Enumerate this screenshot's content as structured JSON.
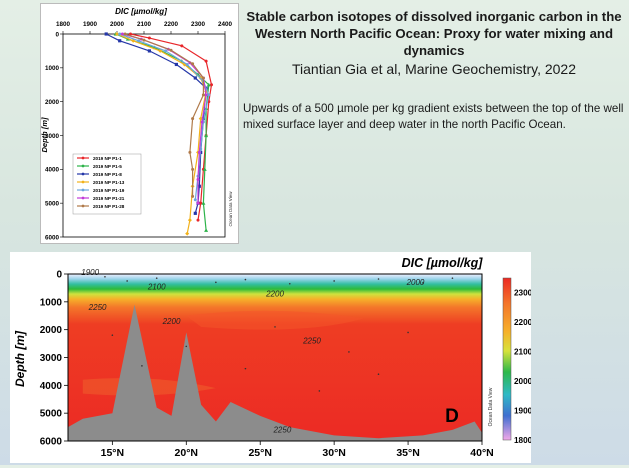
{
  "slide": {
    "title": "Stable carbon isotopes of dissolved inorganic carbon in the Western North Pacific Ocean: Proxy for water mixing and dynamics",
    "citation": "Tiantian Gia et al, Marine Geochemistry, 2022",
    "description": "Upwards of a 500 µmole per kg gradient exists between the top of the well mixed surface layer and deep water in the north Pacific Ocean."
  },
  "chart_data": [
    {
      "type": "line",
      "title": "DIC [µmol/kg]",
      "ylabel": "Depth [m]",
      "xlim": [
        1800,
        2400
      ],
      "ylim": [
        6000,
        0
      ],
      "x_ticks": [
        "1800",
        "1900",
        "2000",
        "2100",
        "2200",
        "2300",
        "2400"
      ],
      "y_ticks": [
        "0",
        "1000",
        "2000",
        "3000",
        "4000",
        "5000",
        "6000"
      ],
      "legend_position": "bottom-left",
      "watermark": "Ocean Data View",
      "series": [
        {
          "name": "2019 NP P1-1",
          "color": "#e8262a",
          "marker": "circle",
          "points": [
            [
              2050,
              0
            ],
            [
              2120,
              120
            ],
            [
              2240,
              350
            ],
            [
              2330,
              800
            ],
            [
              2350,
              1500
            ],
            [
              2340,
              2000
            ],
            [
              2330,
              3000
            ],
            [
              2320,
              4000
            ],
            [
              2310,
              5000
            ],
            [
              2300,
              5500
            ]
          ]
        },
        {
          "name": "2019 NP P1-5",
          "color": "#2db34a",
          "marker": "triangle",
          "points": [
            [
              1995,
              0
            ],
            [
              2040,
              150
            ],
            [
              2140,
              400
            ],
            [
              2240,
              800
            ],
            [
              2300,
              1200
            ],
            [
              2340,
              1500
            ],
            [
              2330,
              2200
            ],
            [
              2330,
              3000
            ],
            [
              2325,
              4000
            ],
            [
              2320,
              5000
            ],
            [
              2330,
              5800
            ]
          ]
        },
        {
          "name": "2019 NP P1-8",
          "color": "#2537a8",
          "marker": "square",
          "points": [
            [
              1960,
              0
            ],
            [
              2010,
              200
            ],
            [
              2120,
              500
            ],
            [
              2220,
              900
            ],
            [
              2290,
              1300
            ],
            [
              2330,
              1600
            ],
            [
              2320,
              2500
            ],
            [
              2310,
              3500
            ],
            [
              2305,
              4500
            ],
            [
              2300,
              5000
            ],
            [
              2290,
              5300
            ]
          ]
        },
        {
          "name": "2019 NP P1-13",
          "color": "#f2b21b",
          "marker": "diamond",
          "points": [
            [
              2000,
              0
            ],
            [
              2060,
              200
            ],
            [
              2160,
              500
            ],
            [
              2250,
              900
            ],
            [
              2310,
              1300
            ],
            [
              2330,
              1700
            ],
            [
              2310,
              2500
            ],
            [
              2300,
              3500
            ],
            [
              2280,
              4500
            ],
            [
              2270,
              5500
            ],
            [
              2260,
              5900
            ]
          ]
        },
        {
          "name": "2019 NP P1-19",
          "color": "#6aa6dc",
          "marker": "circle",
          "points": [
            [
              2010,
              0
            ],
            [
              2080,
              200
            ],
            [
              2180,
              500
            ],
            [
              2260,
              900
            ],
            [
              2320,
              1400
            ],
            [
              2340,
              1800
            ],
            [
              2320,
              2600
            ],
            [
              2310,
              3400
            ],
            [
              2300,
              4200
            ],
            [
              2290,
              4900
            ]
          ]
        },
        {
          "name": "2019 NP P1-21",
          "color": "#c23bd8",
          "marker": "circle",
          "points": [
            [
              2020,
              0
            ],
            [
              2090,
              150
            ],
            [
              2190,
              450
            ],
            [
              2270,
              850
            ],
            [
              2320,
              1300
            ],
            [
              2330,
              1800
            ],
            [
              2315,
              2600
            ],
            [
              2305,
              3500
            ],
            [
              2300,
              4300
            ],
            [
              2300,
              5000
            ]
          ]
        },
        {
          "name": "2019 NP P1-28",
          "color": "#b07a4a",
          "marker": "circle",
          "points": [
            [
              2030,
              0
            ],
            [
              2100,
              180
            ],
            [
              2200,
              480
            ],
            [
              2280,
              880
            ],
            [
              2320,
              1300
            ],
            [
              2320,
              1800
            ],
            [
              2280,
              2500
            ],
            [
              2270,
              3500
            ],
            [
              2280,
              4000
            ],
            [
              2280,
              4800
            ]
          ]
        }
      ]
    },
    {
      "type": "heatmap",
      "title": "DIC [µmol/kg]",
      "ylabel": "Depth [m]",
      "xlim": [
        12,
        40
      ],
      "ylim": [
        6000,
        0
      ],
      "x_ticks": [
        "15°N",
        "20°N",
        "25°N",
        "30°N",
        "35°N",
        "40°N"
      ],
      "y_ticks": [
        "0",
        "1000",
        "2000",
        "3000",
        "4000",
        "5000",
        "6000"
      ],
      "colorbar": {
        "range": [
          1800,
          2350
        ],
        "ticks": [
          "2300",
          "2200",
          "2100",
          "2000",
          "1900",
          "1800"
        ]
      },
      "contour_labels": [
        {
          "text": "1900",
          "lat": 13.5,
          "depth": 30
        },
        {
          "text": "2100",
          "lat": 18.0,
          "depth": 560
        },
        {
          "text": "2000",
          "lat": 35.5,
          "depth": 400
        },
        {
          "text": "2200",
          "lat": 26.0,
          "depth": 800
        },
        {
          "text": "2250",
          "lat": 14.0,
          "depth": 1300
        },
        {
          "text": "2200",
          "lat": 19.0,
          "depth": 1800
        },
        {
          "text": "2250",
          "lat": 28.5,
          "depth": 2500
        },
        {
          "text": "2250",
          "lat": 26.5,
          "depth": 5700
        }
      ],
      "panel_label": "D",
      "watermark": "Ocean Data View"
    }
  ]
}
